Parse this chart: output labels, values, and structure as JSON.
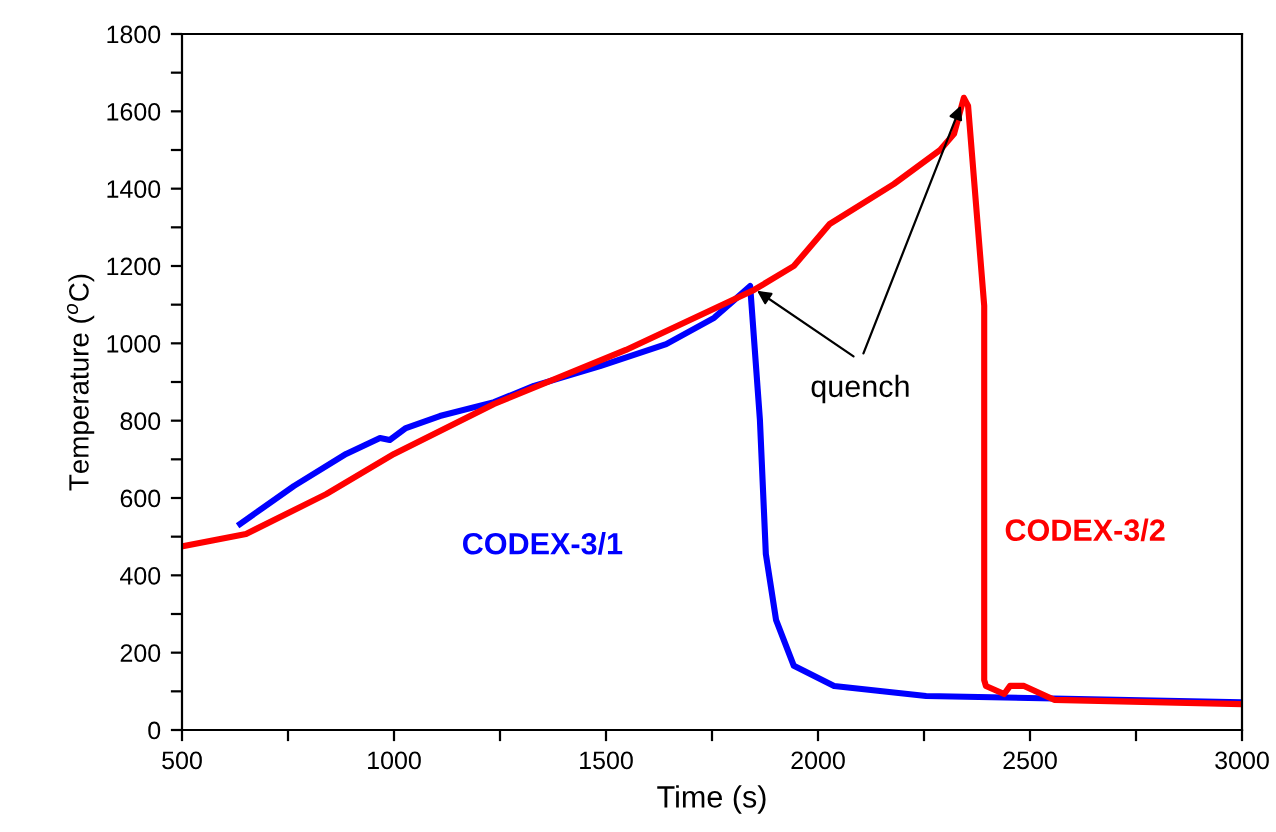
{
  "chart_data": {
    "type": "line",
    "xlabel": "Time (s)",
    "ylabel": "Temperature ($^{o}$C)",
    "xlim": [
      500,
      3000
    ],
    "ylim": [
      0,
      1800
    ],
    "xticks": [
      500,
      {
        "value": 750,
        "label": null
      },
      1000,
      {
        "value": 1250,
        "label": null
      },
      1500,
      {
        "value": 1750,
        "label": null
      },
      2000,
      {
        "value": 2250,
        "label": null
      },
      2500,
      {
        "value": 2750,
        "label": null
      },
      3000
    ],
    "yticks": [
      0,
      {
        "value": 100,
        "label": null
      },
      200,
      {
        "value": 300,
        "label": null
      },
      400,
      {
        "value": 500,
        "label": null
      },
      600,
      {
        "value": 700,
        "label": null
      },
      800,
      {
        "value": 900,
        "label": null
      },
      1000,
      {
        "value": 1100,
        "label": null
      },
      1200,
      {
        "value": 1300,
        "label": null
      },
      1400,
      {
        "value": 1500,
        "label": null
      },
      1600,
      {
        "value": 1700,
        "label": null
      },
      1800
    ],
    "grid": false,
    "legend": false,
    "marker": "none",
    "line_style": "solid",
    "annotations": [
      {
        "text": "quench",
        "x": 1840,
        "y": 1148
      }
    ],
    "series": [
      {
        "name": "CODEX-3/1",
        "color": "#0000ff",
        "x": [
          637,
          764,
          887,
          967,
          990,
          1028,
          1108,
          1236,
          1330,
          1486,
          1642,
          1755,
          1840,
          1863,
          1877,
          1901,
          1943,
          2038,
          2255,
          2995
        ],
        "values": [
          533,
          631,
          714,
          755,
          750,
          781,
          812,
          848,
          890,
          941,
          998,
          1066,
          1148,
          802,
          455,
          285,
          166,
          114,
          88,
          72
        ]
      },
      {
        "name": "CODEX-3/2",
        "color": "#ff0000",
        "x": [
          500,
          651,
          840,
          1000,
          1236,
          1547,
          1849,
          1943,
          2028,
          2179,
          2288,
          2321,
          2344,
          2354,
          2392,
          2392,
          2396,
          2439,
          2453,
          2486,
          2557,
          2995
        ],
        "values": [
          475,
          507,
          610,
          714,
          843,
          983,
          1138,
          1200,
          1309,
          1412,
          1500,
          1542,
          1635,
          1614,
          1097,
          129,
          114,
          93,
          114,
          114,
          78,
          67
        ]
      }
    ]
  }
}
